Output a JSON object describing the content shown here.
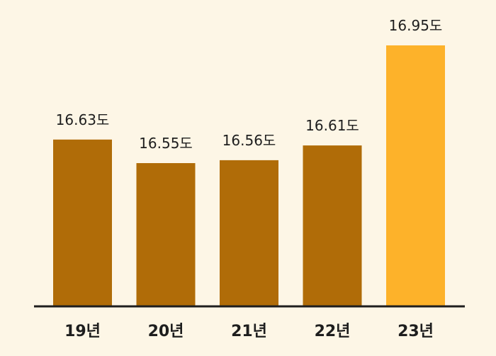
{
  "chart_data": {
    "type": "bar",
    "categories": [
      "19년",
      "20년",
      "21년",
      "22년",
      "23년"
    ],
    "values": [
      16.63,
      16.55,
      16.56,
      16.61,
      16.95
    ],
    "value_labels": [
      "16.63도",
      "16.55도",
      "16.56도",
      "16.61도",
      "16.95도"
    ],
    "title": "",
    "xlabel": "",
    "ylabel": "",
    "grid": false,
    "legend": "none",
    "colors": {
      "default": "#B06C08",
      "highlight": "#FDB22A",
      "axis": "#1E1E1E",
      "background": "#FDF6E6"
    },
    "highlight_category": "23년"
  }
}
